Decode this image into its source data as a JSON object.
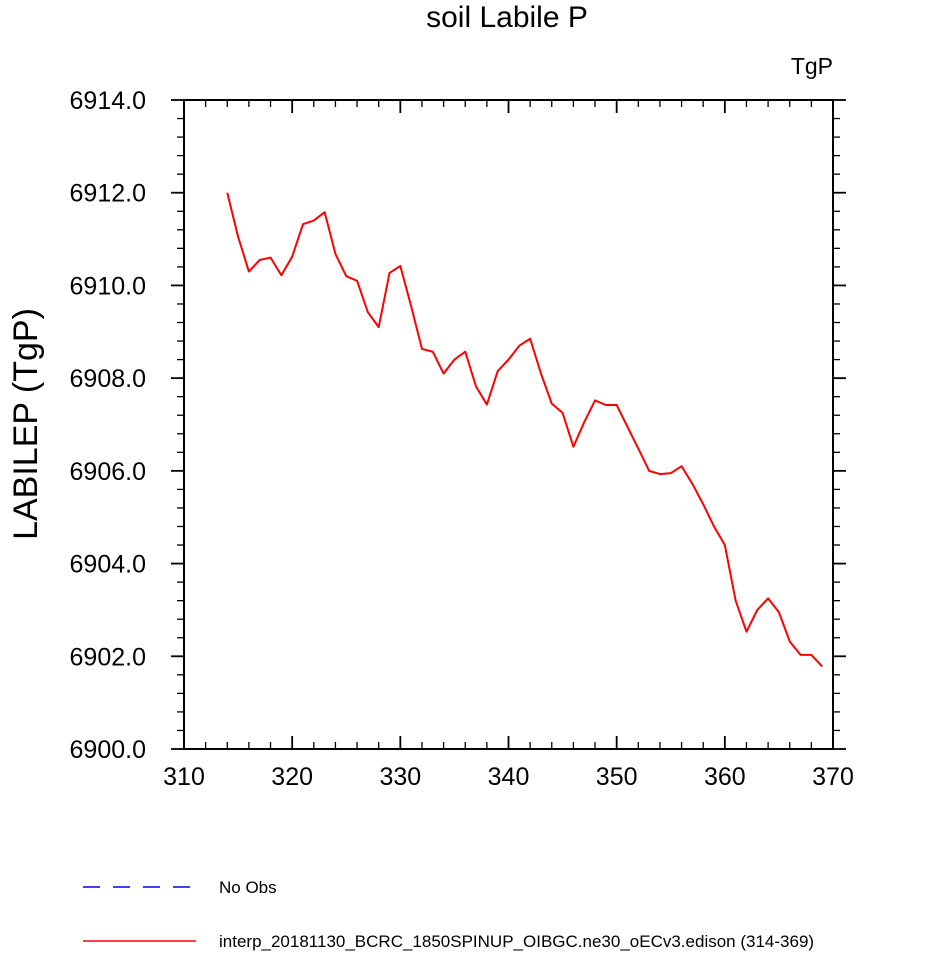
{
  "chart_data": {
    "type": "line",
    "title": "soil Labile P",
    "units_label": "TgP",
    "ylabel": "LABILEP  (TgP)",
    "xlabel": "",
    "xlim": [
      310,
      370
    ],
    "ylim": [
      6900.0,
      6914.0
    ],
    "x_ticks": [
      310,
      320,
      330,
      340,
      350,
      360,
      370
    ],
    "x_tick_labels": [
      "310",
      "320",
      "330",
      "340",
      "350",
      "360",
      "370"
    ],
    "y_ticks": [
      6900.0,
      6902.0,
      6904.0,
      6906.0,
      6908.0,
      6910.0,
      6912.0,
      6914.0
    ],
    "y_tick_labels": [
      "6900.0",
      "6902.0",
      "6904.0",
      "6906.0",
      "6908.0",
      "6910.0",
      "6912.0",
      "6914.0"
    ],
    "x_minor_step": 2,
    "y_minor_step": 0.4,
    "series": [
      {
        "name": "No Obs",
        "color": "#0000ff",
        "dash": "dashed",
        "x": [],
        "values": []
      },
      {
        "name": "interp_20181130_BCRC_1850SPINUP_OIBGC.ne30_oECv3.edison (314-369)",
        "color": "#ff0000",
        "dash": "solid",
        "x": [
          314,
          315,
          316,
          317,
          318,
          319,
          320,
          321,
          322,
          323,
          324,
          325,
          326,
          327,
          328,
          329,
          330,
          331,
          332,
          333,
          334,
          335,
          336,
          337,
          338,
          339,
          340,
          341,
          342,
          343,
          344,
          345,
          346,
          347,
          348,
          349,
          350,
          351,
          352,
          353,
          354,
          355,
          356,
          357,
          358,
          359,
          360,
          361,
          362,
          363,
          364,
          365,
          366,
          367,
          368,
          369
        ],
        "values": [
          6912.0,
          6911.05,
          6910.3,
          6910.55,
          6910.6,
          6910.22,
          6910.62,
          6911.32,
          6911.4,
          6911.58,
          6910.68,
          6910.2,
          6910.1,
          6909.42,
          6909.1,
          6910.27,
          6910.42,
          6909.55,
          6908.63,
          6908.57,
          6908.1,
          6908.4,
          6908.57,
          6907.82,
          6907.43,
          6908.15,
          6908.4,
          6908.7,
          6908.85,
          6908.1,
          6907.45,
          6907.25,
          6906.52,
          6907.05,
          6907.52,
          6907.42,
          6907.42,
          6906.95,
          6906.48,
          6906.0,
          6905.93,
          6905.95,
          6906.1,
          6905.72,
          6905.28,
          6904.8,
          6904.4,
          6903.2,
          6902.53,
          6903.0,
          6903.25,
          6902.95,
          6902.32,
          6902.03,
          6902.03,
          6901.78
        ]
      }
    ],
    "legend_position": "bottom-left"
  }
}
